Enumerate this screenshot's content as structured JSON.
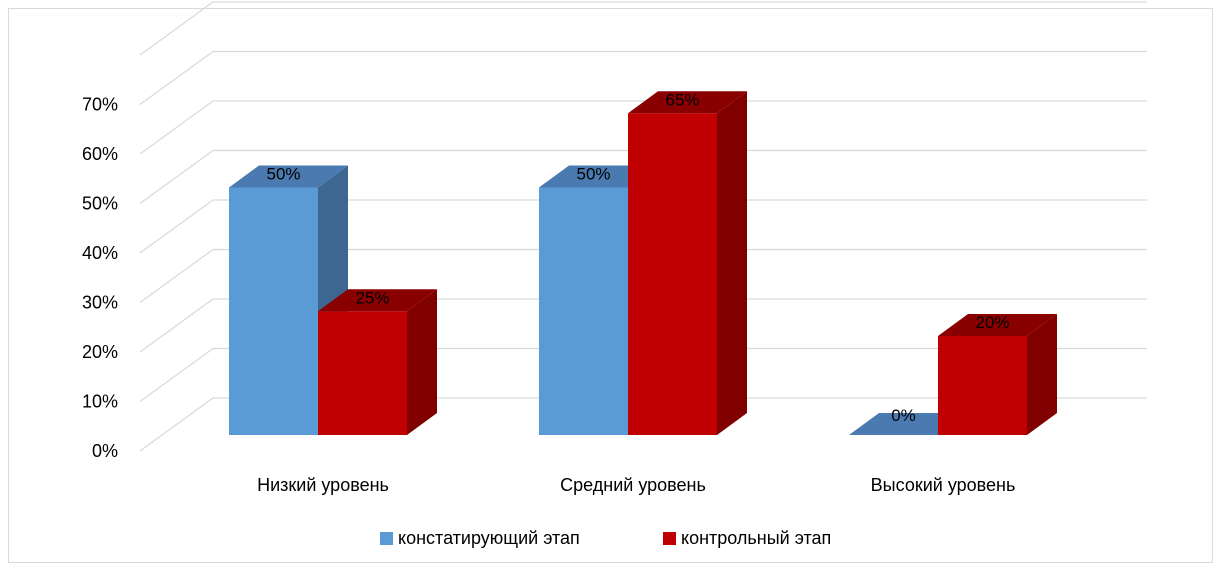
{
  "chart_data": {
    "type": "bar",
    "title": "",
    "xlabel": "",
    "ylabel": "",
    "categories": [
      "Низкий уровень",
      "Средний уровень",
      "Высокий уровень"
    ],
    "series": [
      {
        "name": "констатирующий этап",
        "color": "#5B9BD5",
        "values": [
          50,
          50,
          0
        ]
      },
      {
        "name": "контрольный этап",
        "color": "#C00000",
        "values": [
          25,
          65,
          20
        ]
      }
    ],
    "y_ticks": [
      "0%",
      "10%",
      "20%",
      "30%",
      "40%",
      "50%",
      "60%",
      "70%"
    ],
    "ylim": [
      0,
      80
    ],
    "y_unit": "%",
    "grid": true,
    "legend": "bottom",
    "style": "3d-clustered-column"
  }
}
